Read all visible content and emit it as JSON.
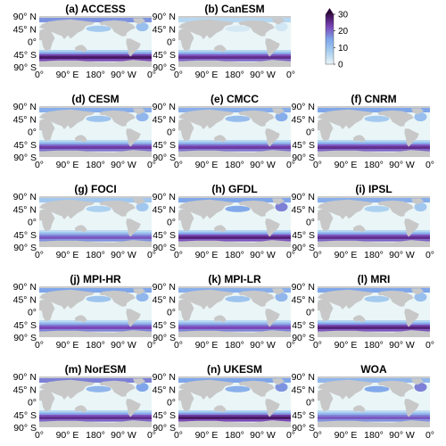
{
  "colors": {
    "land": "#c8c8c8",
    "ocean_low": "#eaf5f7",
    "ocean_mid": "#7fb0ec",
    "ocean_high": "#6e2a96",
    "ocean_max": "#2b0838"
  },
  "panels": [
    {
      "title": "(a) ACCESS",
      "so_intensity": 0.95,
      "arctic_intensity": 0.55,
      "natl_intensity": 0.35
    },
    {
      "title": "(b) CanESM",
      "so_intensity": 0.85,
      "arctic_intensity": 0.2,
      "natl_intensity": 0.1
    },
    null,
    {
      "title": "(d) CESM",
      "so_intensity": 0.8,
      "arctic_intensity": 0.45,
      "natl_intensity": 0.4
    },
    {
      "title": "(e) CMCC",
      "so_intensity": 0.8,
      "arctic_intensity": 0.45,
      "natl_intensity": 0.45
    },
    {
      "title": "(f) CNRM",
      "so_intensity": 0.85,
      "arctic_intensity": 0.5,
      "natl_intensity": 0.35
    },
    {
      "title": "(g) FOCI",
      "so_intensity": 0.7,
      "arctic_intensity": 0.3,
      "natl_intensity": 0.3
    },
    {
      "title": "(h) GFDL",
      "so_intensity": 0.9,
      "arctic_intensity": 0.5,
      "natl_intensity": 0.6
    },
    {
      "title": "(i) IPSL",
      "so_intensity": 0.85,
      "arctic_intensity": 0.45,
      "natl_intensity": 0.3
    },
    {
      "title": "(j) MPI-HR",
      "so_intensity": 0.75,
      "arctic_intensity": 0.5,
      "natl_intensity": 0.4
    },
    {
      "title": "(k) MPI-LR",
      "so_intensity": 0.75,
      "arctic_intensity": 0.45,
      "natl_intensity": 0.4
    },
    {
      "title": "(l) MRI",
      "so_intensity": 0.9,
      "arctic_intensity": 0.5,
      "natl_intensity": 0.35
    },
    {
      "title": "(m) NorESM",
      "so_intensity": 0.85,
      "arctic_intensity": 0.6,
      "natl_intensity": 0.5
    },
    {
      "title": "(n) UKESM",
      "so_intensity": 0.95,
      "arctic_intensity": 0.5,
      "natl_intensity": 0.55
    },
    {
      "title": "WOA",
      "so_intensity": 0.7,
      "arctic_intensity": 0.4,
      "natl_intensity": 0.6
    }
  ],
  "axes": {
    "y_ticks": [
      "90° N",
      "45° N",
      "0°",
      "45° S",
      "90° S"
    ],
    "x_ticks": [
      "0°",
      "90° E",
      "180°",
      "90° W",
      "0°"
    ]
  },
  "colorbar": {
    "ticks": [
      "30",
      "20",
      "10",
      "0"
    ],
    "max": 30,
    "extend": "max"
  }
}
